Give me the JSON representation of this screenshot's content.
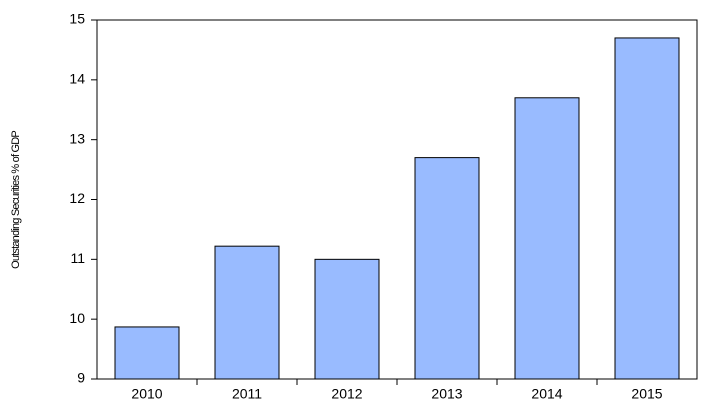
{
  "chart_data": {
    "type": "bar",
    "y_label": "Outstanding Securities % of GDP",
    "categories": [
      "2010",
      "2011",
      "2012",
      "2013",
      "2014",
      "2015"
    ],
    "values": [
      9.87,
      11.22,
      11.0,
      12.7,
      13.7,
      14.7
    ],
    "color": "#99bbff",
    "ylim": [
      9,
      15
    ],
    "yticks": [
      9,
      10,
      11,
      12,
      13,
      14,
      15
    ],
    "grid": false
  }
}
